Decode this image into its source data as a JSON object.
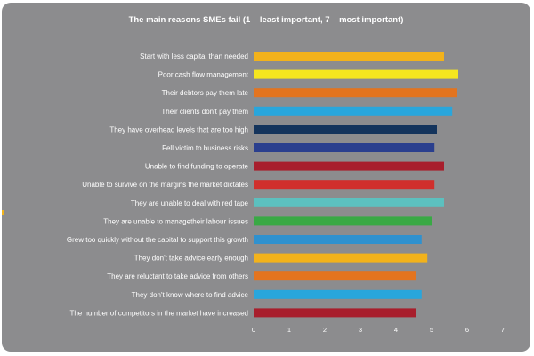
{
  "chart_data": {
    "type": "bar",
    "orientation": "horizontal",
    "title": "The main reasons SMEs fail (1 – least important, 7 – most important)",
    "xlabel": "",
    "ylabel": "",
    "xlim": [
      0,
      7
    ],
    "ticks": [
      "0",
      "1",
      "2",
      "3",
      "4",
      "5",
      "6",
      "7"
    ],
    "grid": false,
    "categories": [
      "Start with less capital than needed",
      "Poor cash flow management",
      "Their debtors pay them late",
      "Their clients don't pay them",
      "They have overhead levels that are too high",
      "Fell victim to business risks",
      "Unable to find funding to operate",
      "Unable to survive on the margins the market dictates",
      "They are unable to deal with red tape",
      "They are unable to managetheir labour issues",
      "Grew too quickly without the capital to support this growth",
      "They don't take advice early enough",
      "They are reluctant to take advice from others",
      "They don't know where to find advice",
      "The number of competitors in the market have increased"
    ],
    "values": [
      5.35,
      5.75,
      5.72,
      5.58,
      5.15,
      5.08,
      5.35,
      5.08,
      5.35,
      5.0,
      4.72,
      4.88,
      4.55,
      4.72,
      4.55
    ],
    "colors": [
      "#f2b21b",
      "#f5e61f",
      "#e3741f",
      "#29a6dc",
      "#14345c",
      "#2a3f8e",
      "#a81e2c",
      "#d02f2c",
      "#5cc0bf",
      "#39a945",
      "#2f91cf",
      "#f2b21b",
      "#e3741f",
      "#29a6dc",
      "#a81e2c"
    ]
  },
  "colors": {
    "background": "#8c8c8e",
    "text": "#ffffff"
  }
}
